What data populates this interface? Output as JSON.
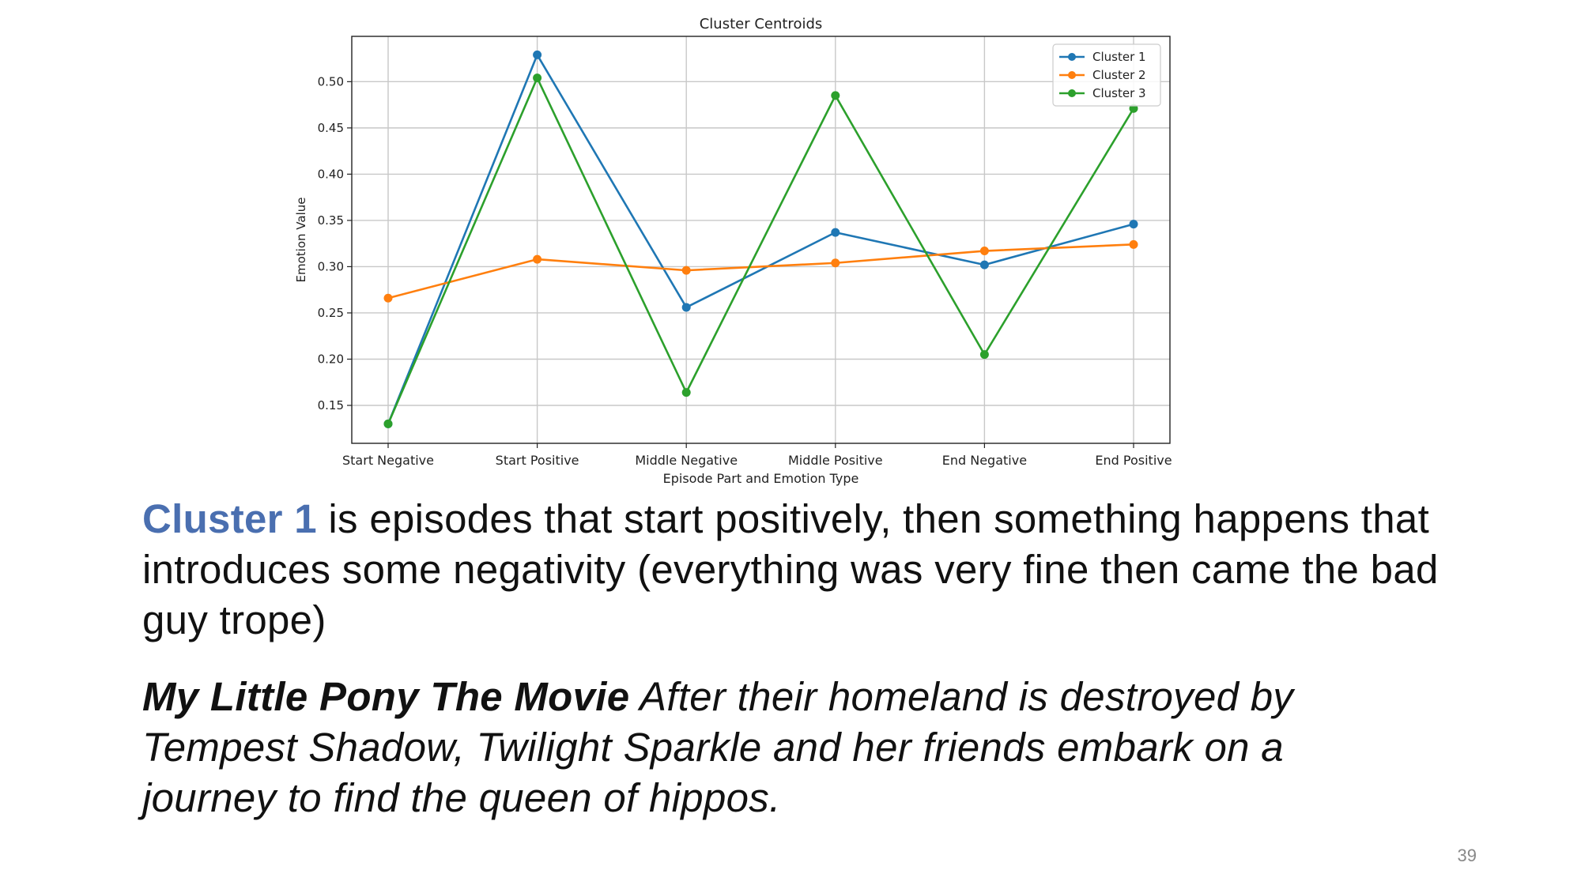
{
  "slide": {
    "description": {
      "highlight": "Cluster 1",
      "text": " is episodes that start positively, then something happens that introduces some negativity (everything was very fine then came the bad guy trope)"
    },
    "movie": {
      "title": "My Little Pony The Movie",
      "synopsis": " After their homeland is destroyed by Tempest Shadow, Twilight Sparkle and her friends embark on a journey to find the queen of hippos."
    },
    "page_number": "39",
    "highlight_color": "#4a6fb0"
  },
  "chart_data": {
    "type": "line",
    "title": "Cluster Centroids",
    "xlabel": "Episode Part and Emotion Type",
    "ylabel": "Emotion Value",
    "categories": [
      "Start Negative",
      "Start Positive",
      "Middle Negative",
      "Middle Positive",
      "End Negative",
      "End Positive"
    ],
    "yticks": [
      "0.15",
      "0.20",
      "0.25",
      "0.30",
      "0.35",
      "0.40",
      "0.45",
      "0.50"
    ],
    "ylim": [
      0.109,
      0.549
    ],
    "grid": true,
    "legend_position": "top-right",
    "series": [
      {
        "name": "Cluster 1",
        "color": "#1f77b4",
        "values": [
          0.13,
          0.529,
          0.256,
          0.337,
          0.302,
          0.346
        ]
      },
      {
        "name": "Cluster 2",
        "color": "#ff7f0e",
        "values": [
          0.266,
          0.308,
          0.296,
          0.304,
          0.317,
          0.324
        ]
      },
      {
        "name": "Cluster 3",
        "color": "#2ca02c",
        "values": [
          0.13,
          0.504,
          0.164,
          0.485,
          0.205,
          0.471
        ]
      }
    ]
  }
}
